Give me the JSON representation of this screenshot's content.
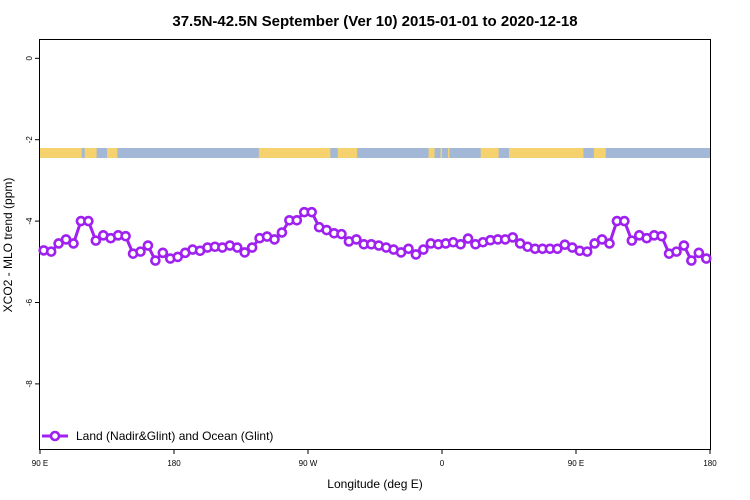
{
  "chart_data": {
    "type": "line",
    "title": "37.5N-42.5N September (Ver 10)   2015-01-01 to 2020-12-18",
    "xlabel": "Longitude (deg E)",
    "ylabel": "XCO2 - MLO trend (ppm)",
    "xlim": [
      90,
      540
    ],
    "ylim": [
      -9.6,
      0.45
    ],
    "x_ticks": [
      90,
      180,
      270,
      360,
      450,
      540
    ],
    "x_tick_labels": [
      "90 E",
      "180",
      "90 W",
      "0",
      "90 E",
      "180"
    ],
    "y_ticks": [
      0,
      -2,
      -4,
      -6,
      -8
    ],
    "y_tick_labels": [
      "0",
      "-2",
      "-4",
      "-6",
      "-8"
    ],
    "grid": false,
    "legend_position": "bottom-left",
    "colors": {
      "series": "#a020f0",
      "land": "#f5d26e",
      "ocean": "#a3b7d6"
    },
    "land_segments": [
      [
        90,
        118
      ],
      [
        120,
        128
      ],
      [
        135,
        142
      ],
      [
        237,
        285
      ],
      [
        290,
        303
      ],
      [
        351,
        355
      ],
      [
        359,
        360
      ],
      [
        364,
        365
      ],
      [
        386,
        398
      ],
      [
        405,
        455
      ],
      [
        462,
        470
      ]
    ],
    "series": [
      {
        "name": "Land (Nadir&Glint) and Ocean (Glint)",
        "x": [
          92.5,
          97.5,
          102.5,
          107.5,
          112.5,
          117.5,
          122.5,
          127.5,
          132.5,
          137.5,
          142.5,
          147.5,
          152.5,
          157.5,
          162.5,
          167.5,
          172.5,
          177.5,
          182.5,
          187.5,
          192.5,
          197.5,
          202.5,
          207.5,
          212.5,
          217.5,
          222.5,
          227.5,
          232.5,
          237.5,
          242.5,
          247.5,
          252.5,
          257.5,
          262.5,
          267.5,
          272.5,
          277.5,
          282.5,
          287.5,
          292.5,
          297.5,
          302.5,
          307.5,
          312.5,
          317.5,
          322.5,
          327.5,
          332.5,
          337.5,
          342.5,
          347.5,
          352.5,
          357.5,
          362.5,
          367.5,
          372.5,
          377.5,
          382.5,
          387.5,
          392.5,
          397.5,
          402.5,
          407.5,
          412.5,
          417.5,
          422.5,
          427.5,
          432.5,
          437.5,
          442.5,
          447.5,
          452.5,
          457.5,
          462.5,
          467.5,
          472.5,
          477.5,
          482.5,
          487.5,
          492.5,
          497.5,
          502.5,
          507.5,
          512.5,
          517.5,
          522.5,
          527.5,
          532.5,
          537.5
        ],
        "values": [
          -4.72,
          -4.75,
          -4.55,
          -4.45,
          -4.55,
          -4.0,
          -4.0,
          -4.48,
          -4.35,
          -4.42,
          -4.35,
          -4.37,
          -4.8,
          -4.75,
          -4.6,
          -4.97,
          -4.78,
          -4.92,
          -4.88,
          -4.78,
          -4.7,
          -4.73,
          -4.65,
          -4.63,
          -4.65,
          -4.6,
          -4.65,
          -4.77,
          -4.65,
          -4.42,
          -4.38,
          -4.45,
          -4.28,
          -3.98,
          -3.98,
          -3.78,
          -3.78,
          -4.15,
          -4.22,
          -4.3,
          -4.32,
          -4.5,
          -4.45,
          -4.57,
          -4.57,
          -4.6,
          -4.65,
          -4.7,
          -4.77,
          -4.68,
          -4.82,
          -4.7,
          -4.55,
          -4.57,
          -4.55,
          -4.52,
          -4.57,
          -4.43,
          -4.57,
          -4.52,
          -4.47,
          -4.45,
          -4.45,
          -4.4,
          -4.55,
          -4.63,
          -4.68,
          -4.68,
          -4.68,
          -4.68,
          -4.58,
          -4.65,
          -4.73,
          -4.75,
          -4.55,
          -4.45,
          -4.55,
          -4.0,
          -4.0,
          -4.48,
          -4.35,
          -4.42,
          -4.35,
          -4.37,
          -4.8,
          -4.75,
          -4.6,
          -4.97,
          -4.78,
          -4.92
        ]
      }
    ]
  }
}
